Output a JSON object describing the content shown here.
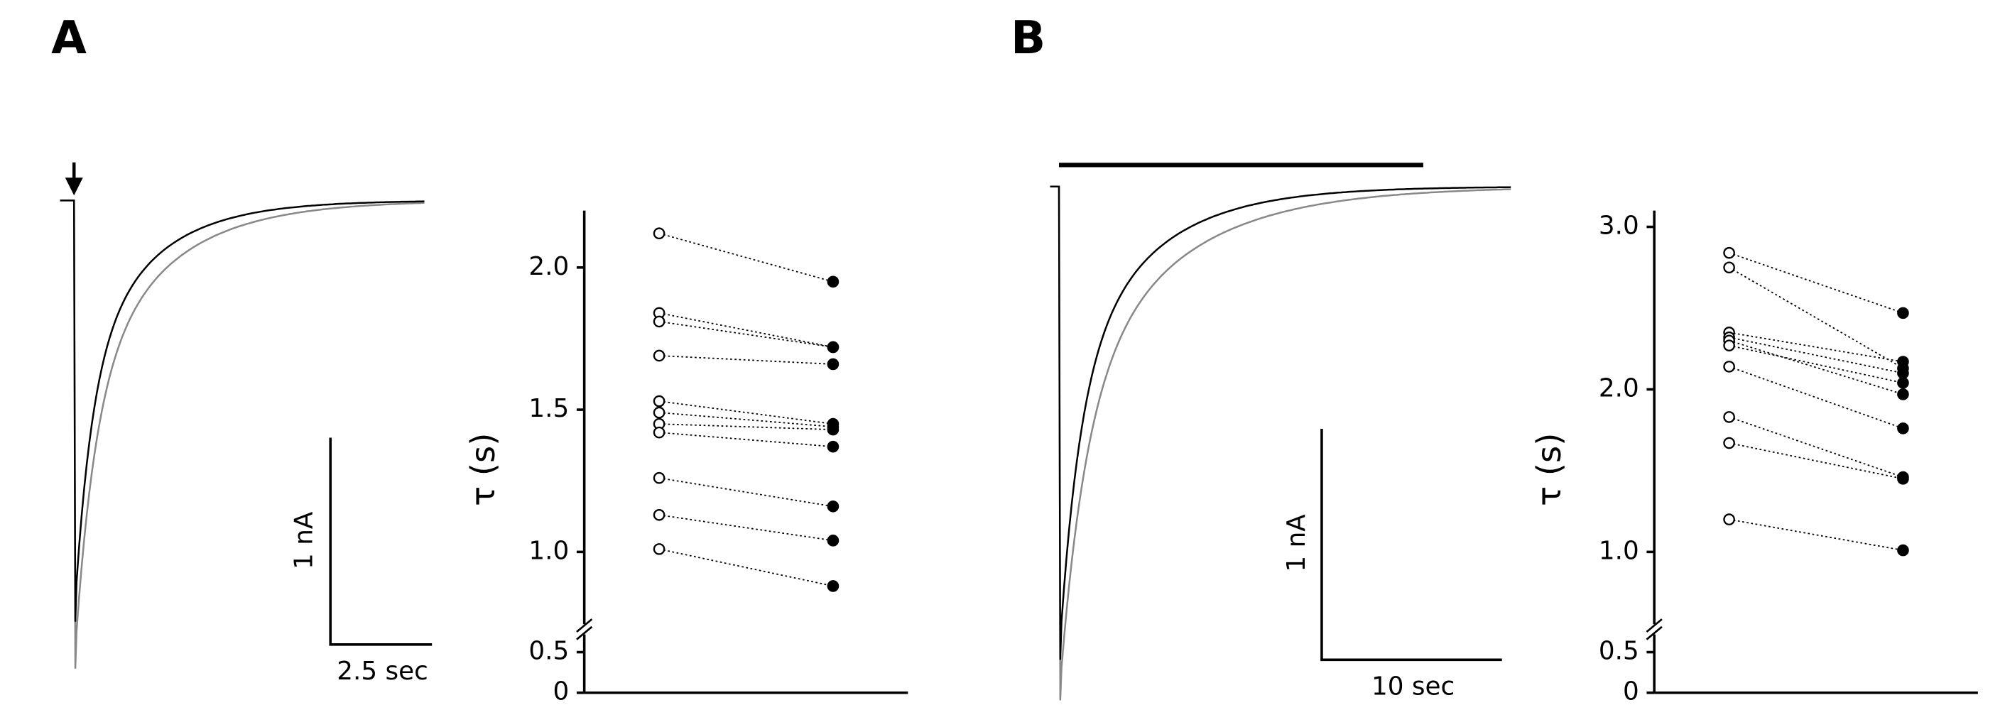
{
  "chart_data": [
    {
      "type": "paired",
      "panel_label": "A",
      "scale_bar_y": "1 nA",
      "scale_bar_x": "2.5 sec",
      "ylabel": "τ (s)",
      "ylim": [
        0,
        2.2
      ],
      "axis_break": [
        0.5,
        1.0
      ],
      "yticks": [
        0,
        {
          "value": 0.5,
          "label": "0.5"
        },
        {
          "value": 1,
          "label": "1.0"
        },
        {
          "value": 1.5,
          "label": "1.5"
        },
        {
          "value": 2,
          "label": "2.0"
        }
      ],
      "series": [
        {
          "marker": "open",
          "color": "#000000",
          "values": [
            2.12,
            1.84,
            1.81,
            1.69,
            1.53,
            1.49,
            1.45,
            1.42,
            1.26,
            1.13,
            1.01
          ]
        },
        {
          "marker": "filled",
          "color": "#000000",
          "values": [
            1.95,
            1.72,
            1.72,
            1.66,
            1.45,
            1.44,
            1.43,
            1.37,
            1.16,
            1.04,
            0.88
          ]
        }
      ]
    },
    {
      "type": "paired",
      "panel_label": "B",
      "scale_bar_y": "1 nA",
      "scale_bar_x": "10 sec",
      "ylabel": "τ (s)",
      "ylim": [
        0,
        3.1
      ],
      "axis_break": [
        0.5,
        1.0
      ],
      "yticks": [
        0,
        {
          "value": 0.5,
          "label": "0.5"
        },
        {
          "value": 1,
          "label": "1.0"
        },
        {
          "value": 2,
          "label": "2.0"
        },
        {
          "value": 3,
          "label": "3.0"
        }
      ],
      "series": [
        {
          "marker": "open",
          "color": "#000000",
          "values": [
            2.84,
            2.75,
            2.35,
            2.32,
            2.3,
            2.27,
            2.14,
            1.83,
            1.67,
            1.2
          ]
        },
        {
          "marker": "filled",
          "color": "#000000",
          "values": [
            2.47,
            2.13,
            2.17,
            2.1,
            1.97,
            2.04,
            1.76,
            1.46,
            1.45,
            1.01
          ]
        }
      ]
    }
  ]
}
